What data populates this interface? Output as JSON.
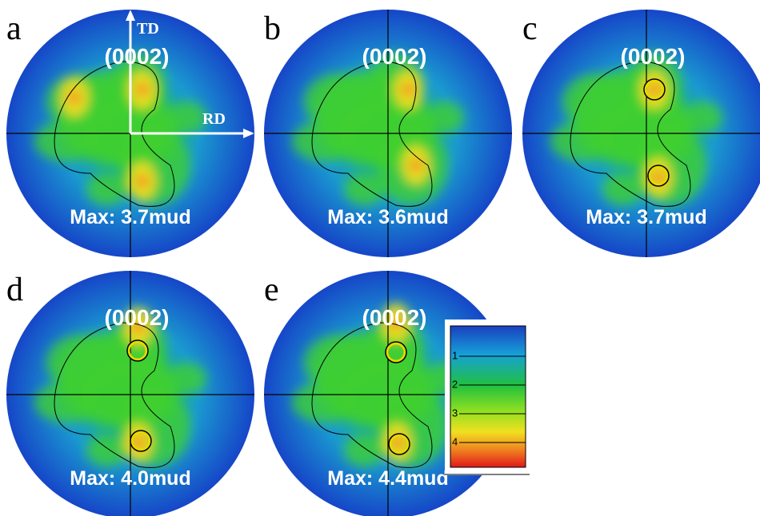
{
  "panels": [
    {
      "label": "a",
      "plane": "(0002)",
      "max": "Max: 3.7mud"
    },
    {
      "label": "b",
      "plane": "(0002)",
      "max": "Max: 3.6mud"
    },
    {
      "label": "c",
      "plane": "(0002)",
      "max": "Max: 3.7mud"
    },
    {
      "label": "d",
      "plane": "(0002)",
      "max": "Max: 4.0mud"
    },
    {
      "label": "e",
      "plane": "(0002)",
      "max": "Max: 4.4mud"
    }
  ],
  "axes": {
    "td": "TD",
    "rd": "RD"
  },
  "colorbar": {
    "range": [
      0,
      5
    ],
    "ticks": [
      1,
      2,
      3,
      4
    ]
  }
}
